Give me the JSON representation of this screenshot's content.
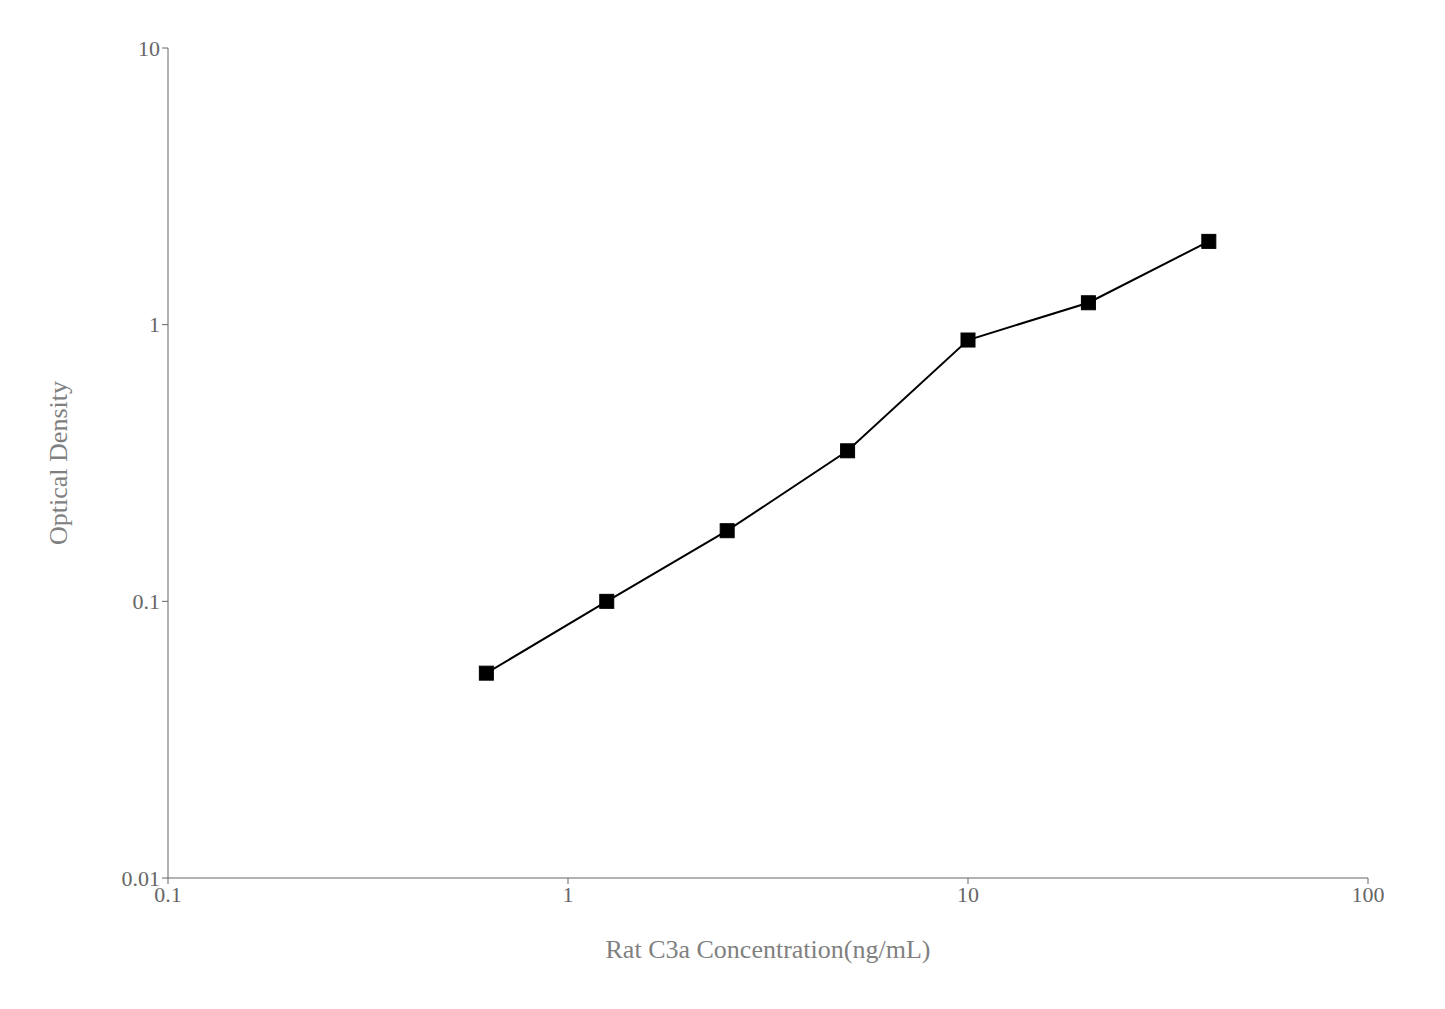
{
  "chart_data": {
    "type": "line",
    "x": [
      0.625,
      1.25,
      2.5,
      5.0,
      10.0,
      20.0,
      40.0
    ],
    "values": [
      0.055,
      0.1,
      0.18,
      0.35,
      0.88,
      1.2,
      2.0
    ],
    "xlim": [
      0.1,
      100
    ],
    "ylim": [
      0.01,
      10
    ],
    "xticks": [
      0.1,
      1,
      10,
      100
    ],
    "yticks": [
      0.01,
      0.1,
      1,
      10
    ],
    "xlabel": "Rat C3a Concentration(ng/mL)",
    "ylabel": "Optical Density",
    "log": true,
    "color": "#000000",
    "marker": "square",
    "grid": false
  }
}
